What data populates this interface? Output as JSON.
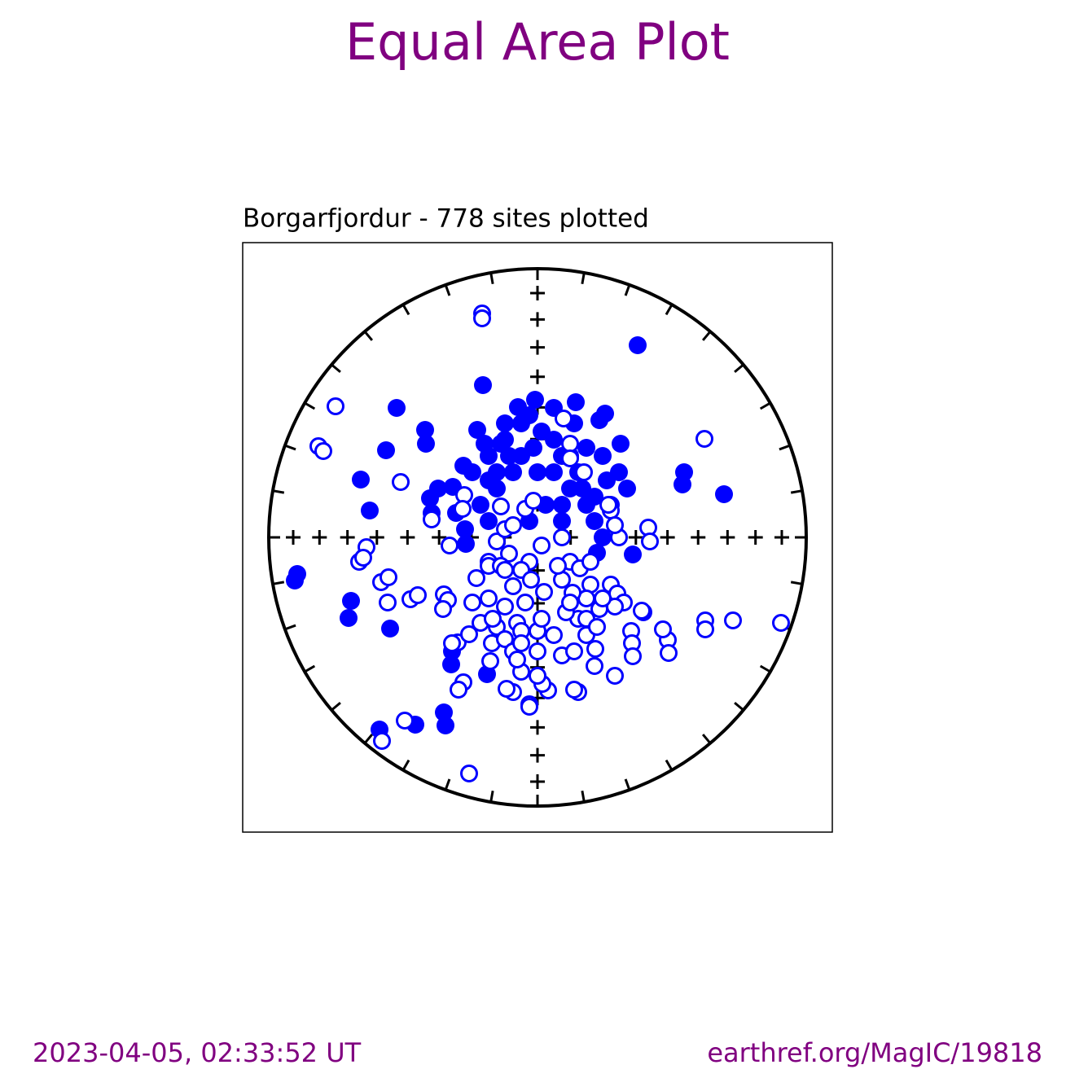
{
  "chart_data": {
    "type": "equal_area",
    "title": "Equal Area Plot",
    "subtitle": "Borgarfjordur - 778 sites plotted",
    "footer_left": "2023-04-05, 02:33:52 UT",
    "footer_right": "earthref.org/MagIC/19818",
    "xlim": [
      -330,
      330
    ],
    "ylim": [
      -330,
      330
    ],
    "series": [
      {
        "color": "#0000ff",
        "filled": true,
        "x": [
          123,
          -67,
          -173,
          -138,
          -137,
          -186,
          -217,
          -206,
          -295,
          -298,
          -229,
          -232,
          -181,
          -115,
          -113,
          -194,
          -150,
          -106,
          -62,
          180,
          178,
          229,
          117,
          76,
          83,
          47,
          20,
          -3,
          -24,
          -74,
          -91,
          -132,
          -122,
          -104,
          -89,
          -88,
          -60,
          -40,
          -20,
          -5,
          20,
          40,
          60,
          80,
          100,
          110,
          90,
          60,
          40,
          0,
          -30,
          -50,
          -70,
          -60,
          -10,
          30,
          70,
          -10,
          -40,
          -65,
          -50,
          20,
          50,
          85,
          102,
          45,
          5,
          -20,
          -100,
          -130,
          10,
          80,
          73,
          -105,
          -35,
          -45,
          30,
          55,
          70,
          30,
          -60,
          -80
        ],
        "y": [
          236,
          187,
          159,
          132,
          115,
          107,
          71,
          33,
          -45,
          -53,
          -78,
          -99,
          -112,
          -215,
          -231,
          -236,
          -230,
          -156,
          -168,
          80,
          65,
          53,
          -21,
          144,
          152,
          166,
          159,
          169,
          160,
          132,
          88,
          48,
          60,
          62,
          10,
          -8,
          100,
          120,
          140,
          110,
          120,
          100,
          110,
          100,
          80,
          60,
          40,
          40,
          60,
          80,
          80,
          60,
          40,
          20,
          20,
          20,
          20,
          150,
          140,
          115,
          80,
          80,
          80,
          70,
          115,
          140,
          130,
          100,
          30,
          30,
          40,
          0,
          -19,
          -140,
          100,
          115,
          100,
          60,
          50,
          40,
          70,
          80
        ]
      },
      {
        "color": "#0000ff",
        "filled": false,
        "x": [
          -68,
          -68,
          -248,
          -269,
          -263,
          -168,
          205,
          32,
          40,
          40,
          -130,
          -108,
          -210,
          -219,
          -214,
          -192,
          -183,
          -184,
          -156,
          -147,
          -115,
          -110,
          -116,
          -98,
          -105,
          -84,
          -91,
          -97,
          -84,
          -163,
          -191,
          299,
          240,
          206,
          206,
          160,
          154,
          161,
          115,
          116,
          117,
          130,
          136,
          138,
          100,
          90,
          95,
          95,
          70,
          71,
          50,
          45,
          13,
          6,
          -10,
          -10,
          -30,
          -38,
          -58,
          -56,
          -50,
          -80,
          -75,
          -60,
          -50,
          -40,
          -30,
          -15,
          -5,
          -45,
          -90,
          -92,
          5,
          30,
          40,
          52,
          65,
          90,
          98,
          106,
          128,
          76,
          60,
          43,
          30,
          25,
          -10,
          -20,
          -35,
          -60,
          -45,
          -30,
          -40,
          -60,
          -70,
          -55,
          -25,
          -20,
          -40,
          -30,
          0,
          30,
          45,
          60,
          50,
          35,
          20,
          0,
          5,
          -15,
          8,
          -8,
          -20,
          0,
          -25,
          40,
          60,
          73,
          95,
          80,
          65,
          57,
          87,
          -20,
          -40
        ],
        "y": [
          275,
          269,
          161,
          112,
          106,
          68,
          121,
          146,
          115,
          97,
          22,
          -10,
          -12,
          -30,
          -25,
          -55,
          -49,
          -80,
          -76,
          -71,
          -70,
          -77,
          -88,
          -129,
          -130,
          -119,
          -178,
          -187,
          -290,
          -225,
          -250,
          -105,
          -102,
          -102,
          -113,
          -126,
          -113,
          -142,
          -115,
          -130,
          -146,
          -92,
          12,
          -5,
          0,
          33,
          15,
          -170,
          -158,
          -137,
          -190,
          -187,
          -188,
          -180,
          -205,
          -208,
          -190,
          -186,
          -152,
          -130,
          -110,
          -80,
          -50,
          -30,
          -5,
          10,
          15,
          35,
          45,
          38,
          52,
          35,
          -10,
          0,
          -30,
          -38,
          -58,
          -58,
          -69,
          -80,
          -90,
          -88,
          -75,
          -68,
          -52,
          -35,
          -30,
          -40,
          -20,
          -35,
          -35,
          -60,
          -85,
          -75,
          -105,
          -100,
          -105,
          -115,
          -125,
          -140,
          -140,
          -145,
          -140,
          -120,
          -100,
          -92,
          -120,
          -115,
          -100,
          -80,
          -67,
          -52,
          -165,
          -170,
          -150,
          -80,
          -100,
          -110,
          -85,
          -75,
          -30,
          80,
          40,
          -130,
          -40
        ]
      }
    ]
  }
}
